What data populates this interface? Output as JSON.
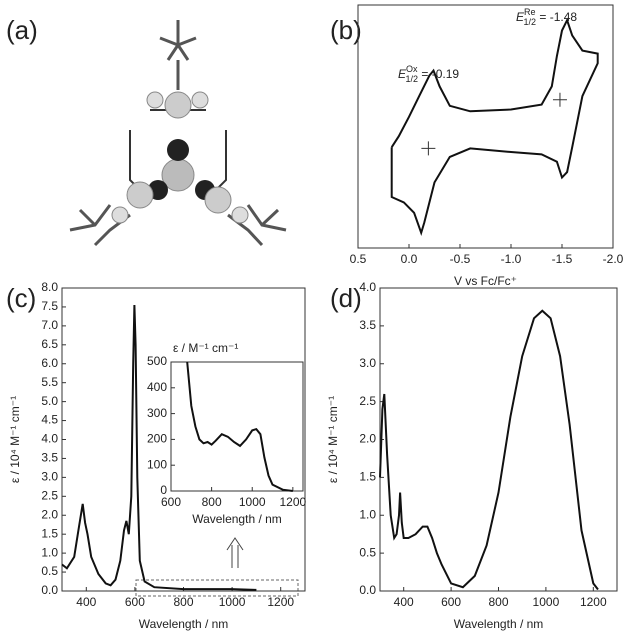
{
  "panel_labels": [
    "(a)",
    "(b)",
    "(c)",
    "(d)"
  ],
  "chart_data": [
    {
      "type": "line",
      "xlabel": "V vs Fc/Fc⁺",
      "xlim": [
        0.5,
        -2.0
      ],
      "xticks": [
        0.5,
        {
          "value": 0,
          "label": "0.0"
        },
        -0.5,
        {
          "value": -1,
          "label": "-1.0"
        },
        -1.5,
        {
          "value": -2,
          "label": "-2.0"
        }
      ],
      "ylim": [
        -1,
        1
      ],
      "color": "#111111",
      "x": [
        0.17,
        0.1,
        0.0,
        -0.1,
        -0.2,
        -0.24,
        -0.3,
        -0.4,
        -0.6,
        -1.0,
        -1.3,
        -1.4,
        -1.45,
        -1.5,
        -1.55,
        -1.6,
        -1.7,
        -1.85,
        -1.85,
        -1.7,
        -1.6,
        -1.55,
        -1.5,
        -1.45,
        -1.3,
        -1.0,
        -0.6,
        -0.4,
        -0.25,
        -0.15,
        -0.12,
        -0.05,
        0.05,
        0.17,
        0.17
      ],
      "values": [
        -0.17,
        -0.08,
        0.08,
        0.25,
        0.42,
        0.46,
        0.33,
        0.17,
        0.125,
        0.14,
        0.18,
        0.33,
        0.58,
        0.79,
        0.875,
        0.75,
        0.625,
        0.6,
        0.52,
        0.25,
        -0.17,
        -0.375,
        -0.42,
        -0.29,
        -0.23,
        -0.21,
        -0.18,
        -0.25,
        -0.46,
        -0.79,
        -0.875,
        -0.71,
        -0.625,
        -0.58,
        -0.17
      ],
      "markers": {
        "x": [
          -0.19,
          -1.48
        ],
        "values": [
          -0.18,
          0.22
        ]
      },
      "annotations": [
        {
          "symbol": "E",
          "sup": "Ox",
          "sub": "1/2",
          "rest": " = -0.19"
        },
        {
          "symbol": "E",
          "sup": "Re",
          "sub": "1/2",
          "rest": " = -1.48"
        }
      ]
    },
    {
      "type": "line",
      "xlabel": "Wavelength / nm",
      "ylabel": "ε / 10⁴ M⁻¹ cm⁻¹",
      "xlim": [
        300,
        1300
      ],
      "xticks": [
        400,
        600,
        800,
        1000,
        1200
      ],
      "ylim": [
        0,
        8
      ],
      "yticks": [
        {
          "value": 0,
          "label": "0.0"
        },
        0.5,
        {
          "value": 1,
          "label": "1.0"
        },
        1.5,
        {
          "value": 2,
          "label": "2.0"
        },
        2.5,
        {
          "value": 3,
          "label": "3.0"
        },
        3.5,
        {
          "value": 4,
          "label": "4.0"
        },
        4.5,
        {
          "value": 5,
          "label": "5.0"
        },
        5.5,
        {
          "value": 6,
          "label": "6.0"
        },
        6.5,
        {
          "value": 7,
          "label": "7.0"
        },
        7.5,
        {
          "value": 8,
          "label": "8.0"
        }
      ],
      "color": "#111111",
      "x": [
        300,
        320,
        350,
        370,
        385,
        395,
        405,
        420,
        450,
        480,
        500,
        520,
        540,
        555,
        565,
        575,
        585,
        593,
        598,
        603,
        610,
        620,
        640,
        680,
        800,
        1000,
        1100
      ],
      "values": [
        0.7,
        0.6,
        0.9,
        1.7,
        2.3,
        1.8,
        1.5,
        0.9,
        0.45,
        0.2,
        0.15,
        0.3,
        0.8,
        1.6,
        1.85,
        1.5,
        2.5,
        6.0,
        7.55,
        6.5,
        3.0,
        0.8,
        0.25,
        0.1,
        0.05,
        0.05,
        0.03
      ]
    },
    {
      "type": "line",
      "xlabel": "Wavelength / nm",
      "ylabel": "ε / M⁻¹ cm⁻¹",
      "xlim": [
        600,
        1250
      ],
      "xticks": [
        600,
        800,
        1000,
        1200
      ],
      "ylim": [
        0,
        500
      ],
      "yticks": [
        0,
        100,
        200,
        300,
        400,
        500
      ],
      "color": "#111111",
      "x": [
        680,
        700,
        720,
        740,
        760,
        780,
        800,
        820,
        850,
        880,
        910,
        940,
        970,
        1000,
        1020,
        1040,
        1060,
        1080,
        1100,
        1150,
        1200
      ],
      "values": [
        500,
        330,
        250,
        200,
        185,
        190,
        180,
        195,
        220,
        210,
        190,
        175,
        200,
        235,
        240,
        220,
        130,
        60,
        25,
        5,
        0
      ]
    },
    {
      "type": "line",
      "xlabel": "Wavelength / nm",
      "ylabel": "ε / 10⁴ M⁻¹ cm⁻¹",
      "xlim": [
        300,
        1300
      ],
      "xticks": [
        400,
        600,
        800,
        1000,
        1200
      ],
      "ylim": [
        0,
        4
      ],
      "yticks": [
        {
          "value": 0,
          "label": "0.0"
        },
        0.5,
        {
          "value": 1,
          "label": "1.0"
        },
        1.5,
        {
          "value": 2,
          "label": "2.0"
        },
        2.5,
        {
          "value": 3,
          "label": "3.0"
        },
        3.5,
        {
          "value": 4,
          "label": "4.0"
        }
      ],
      "color": "#111111",
      "x": [
        300,
        310,
        318,
        330,
        345,
        360,
        370,
        380,
        385,
        392,
        400,
        420,
        450,
        480,
        500,
        520,
        540,
        560,
        600,
        650,
        700,
        750,
        800,
        850,
        900,
        950,
        985,
        1020,
        1060,
        1100,
        1150,
        1200,
        1220
      ],
      "values": [
        1.5,
        2.4,
        2.6,
        1.8,
        1.0,
        0.7,
        0.75,
        1.0,
        1.3,
        0.9,
        0.7,
        0.7,
        0.75,
        0.85,
        0.85,
        0.7,
        0.5,
        0.35,
        0.1,
        0.05,
        0.2,
        0.6,
        1.3,
        2.3,
        3.1,
        3.6,
        3.7,
        3.6,
        3.1,
        2.2,
        0.8,
        0.1,
        0.02
      ]
    }
  ]
}
